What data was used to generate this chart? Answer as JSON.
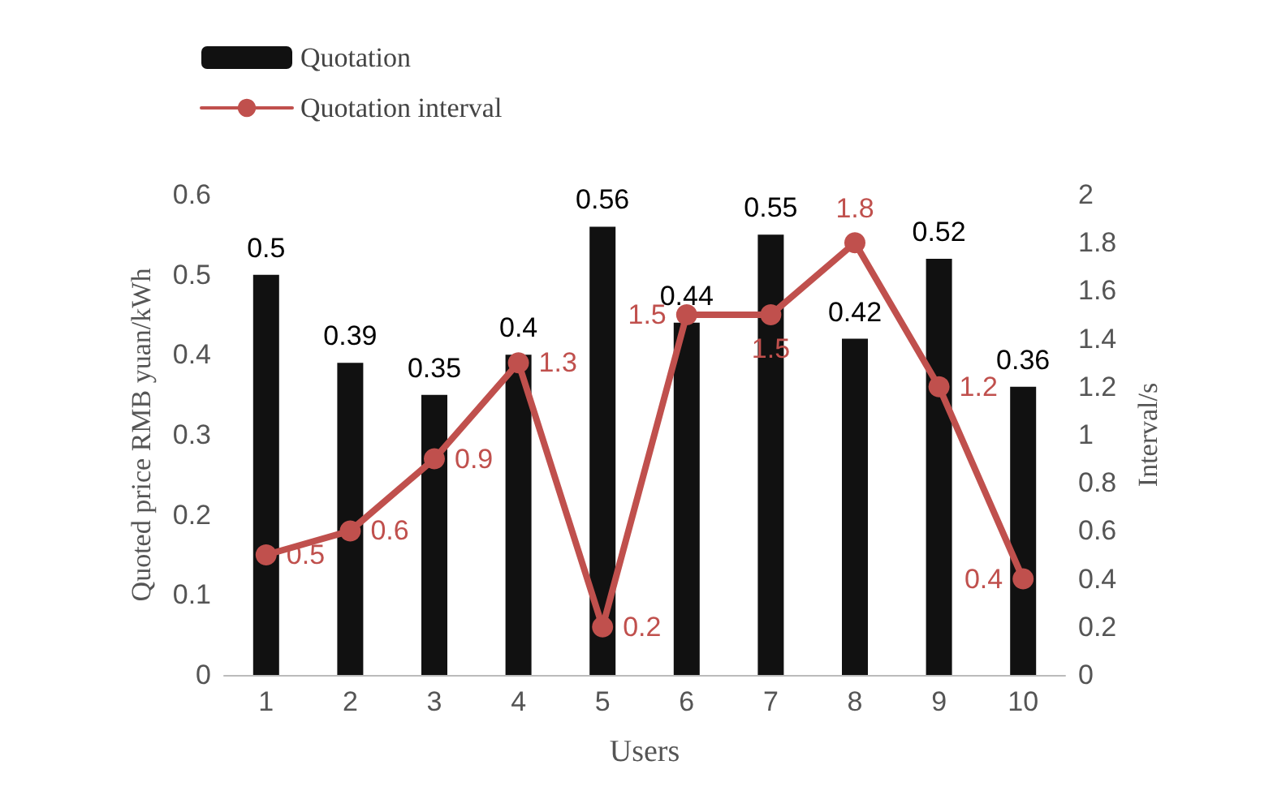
{
  "chart_data": {
    "type": "bar",
    "xlabel": "Users",
    "ylabel": "Quoted price RMB yuan/kWh",
    "y2label": "Interval/s",
    "categories": [
      "1",
      "2",
      "3",
      "4",
      "5",
      "6",
      "7",
      "8",
      "9",
      "10"
    ],
    "series": [
      {
        "name": "Quotation",
        "color": "#111111",
        "values": [
          0.5,
          0.39,
          0.35,
          0.4,
          0.56,
          0.44,
          0.55,
          0.42,
          0.52,
          0.36
        ]
      },
      {
        "name": "Quotation interval",
        "type": "line",
        "axis": "y2",
        "color": "#c0504d",
        "values": [
          0.5,
          0.6,
          0.9,
          1.3,
          0.2,
          1.5,
          1.5,
          1.8,
          1.2,
          0.4
        ]
      }
    ],
    "ylim": [
      0,
      0.6
    ],
    "yticks": [
      0,
      0.1,
      0.2,
      0.3,
      0.4,
      0.5,
      0.6
    ],
    "y2lim": [
      0,
      2
    ],
    "y2ticks": [
      0,
      0.2,
      0.4,
      0.6,
      0.8,
      1,
      1.2,
      1.4,
      1.6,
      1.8,
      2
    ],
    "data_labels": true,
    "legend": "top left",
    "grid": false,
    "marker": "circle",
    "line_style": "solid"
  }
}
